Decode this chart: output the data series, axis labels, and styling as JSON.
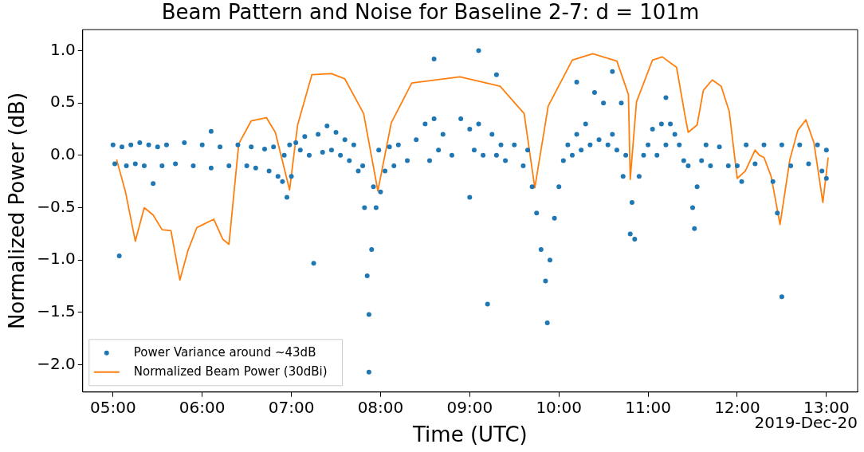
{
  "chart_data": {
    "type": "scatter",
    "title": "Beam Pattern and Noise for Baseline 2-7: d = 101m",
    "xlabel": "Time (UTC)",
    "ylabel": "Normalized Power (dB)",
    "annotations": [
      "2019-Dec-20"
    ],
    "xlim": [
      4.66,
      13.35
    ],
    "ylim": [
      -2.26,
      1.2
    ],
    "xticks": [
      {
        "value": 5,
        "label": "05:00"
      },
      {
        "value": 6,
        "label": "06:00"
      },
      {
        "value": 7,
        "label": "07:00"
      },
      {
        "value": 8,
        "label": "08:00"
      },
      {
        "value": 9,
        "label": "09:00"
      },
      {
        "value": 10,
        "label": "10:00"
      },
      {
        "value": 11,
        "label": "11:00"
      },
      {
        "value": 12,
        "label": "12:00"
      },
      {
        "value": 13,
        "label": "13:00"
      }
    ],
    "yticks": [
      {
        "value": -2,
        "label": "−2.0"
      },
      {
        "value": -1.5,
        "label": "−1.5"
      },
      {
        "value": -1,
        "label": "−1.0"
      },
      {
        "value": -0.5,
        "label": "−0.5"
      },
      {
        "value": 0,
        "label": "0.0"
      },
      0.5,
      {
        "value": 1,
        "label": "1.0"
      }
    ],
    "grid": false,
    "legend": "bottom left",
    "series": [
      {
        "name": "Power Variance around ~43dB",
        "marker": "circle",
        "color": "#1f77b4",
        "x": [
          5.0,
          5.02,
          5.07,
          5.1,
          5.15,
          5.2,
          5.25,
          5.3,
          5.35,
          5.4,
          5.45,
          5.5,
          5.55,
          5.6,
          5.7,
          5.8,
          5.9,
          6.0,
          6.1,
          6.1,
          6.2,
          6.3,
          6.4,
          6.5,
          6.55,
          6.6,
          6.7,
          6.75,
          6.8,
          6.85,
          6.9,
          6.92,
          6.95,
          6.98,
          7.0,
          7.05,
          7.1,
          7.15,
          7.2,
          7.25,
          7.3,
          7.35,
          7.4,
          7.45,
          7.5,
          7.55,
          7.6,
          7.65,
          7.7,
          7.75,
          7.8,
          7.82,
          7.85,
          7.87,
          7.87,
          7.9,
          7.92,
          7.95,
          7.98,
          8.0,
          8.05,
          8.1,
          8.15,
          8.2,
          8.3,
          8.4,
          8.5,
          8.55,
          8.6,
          8.6,
          8.65,
          8.7,
          8.8,
          8.9,
          9.0,
          9.0,
          9.05,
          9.1,
          9.1,
          9.15,
          9.2,
          9.25,
          9.3,
          9.3,
          9.35,
          9.4,
          9.5,
          9.6,
          9.65,
          9.7,
          9.75,
          9.8,
          9.85,
          9.87,
          9.9,
          9.95,
          10.0,
          10.05,
          10.1,
          10.15,
          10.2,
          10.2,
          10.25,
          10.3,
          10.35,
          10.4,
          10.45,
          10.5,
          10.55,
          10.6,
          10.6,
          10.65,
          10.7,
          10.72,
          10.75,
          10.8,
          10.82,
          10.85,
          10.9,
          10.95,
          11.0,
          11.05,
          11.1,
          11.15,
          11.2,
          11.2,
          11.25,
          11.3,
          11.35,
          11.4,
          11.45,
          11.5,
          11.52,
          11.55,
          11.6,
          11.65,
          11.7,
          11.8,
          11.9,
          12.0,
          12.05,
          12.1,
          12.2,
          12.3,
          12.4,
          12.45,
          12.5,
          12.5,
          12.6,
          12.7,
          12.8,
          12.9,
          12.95,
          13.0,
          13.0
        ],
        "values": [
          0.1,
          -0.08,
          -0.96,
          0.08,
          -0.1,
          0.1,
          -0.08,
          0.12,
          -0.1,
          0.1,
          -0.27,
          0.08,
          -0.1,
          0.1,
          -0.08,
          0.12,
          -0.1,
          0.1,
          -0.12,
          0.23,
          0.08,
          -0.1,
          0.1,
          -0.1,
          0.08,
          -0.12,
          0.06,
          -0.15,
          0.08,
          -0.2,
          -0.25,
          0.0,
          -0.4,
          0.1,
          -0.2,
          0.12,
          0.05,
          0.18,
          0.0,
          -1.03,
          0.2,
          0.03,
          0.28,
          0.05,
          0.22,
          0.0,
          0.15,
          -0.05,
          0.1,
          -0.15,
          -0.1,
          -0.5,
          -1.15,
          -1.52,
          -2.07,
          -0.9,
          -0.3,
          -0.5,
          0.05,
          -0.35,
          -0.15,
          0.08,
          -0.1,
          0.1,
          -0.05,
          0.15,
          0.3,
          -0.05,
          0.92,
          0.35,
          0.05,
          0.2,
          0.0,
          0.35,
          0.25,
          -0.4,
          0.05,
          1.0,
          0.3,
          0.0,
          -1.42,
          0.2,
          0.77,
          0.0,
          0.1,
          -0.05,
          0.1,
          -0.1,
          0.05,
          -0.3,
          -0.55,
          -0.9,
          -1.2,
          -1.6,
          -1.0,
          -0.6,
          -0.3,
          -0.05,
          0.1,
          0.0,
          0.7,
          0.2,
          0.05,
          0.3,
          0.1,
          0.6,
          0.15,
          0.5,
          0.1,
          0.8,
          0.2,
          0.05,
          0.5,
          -0.2,
          0.0,
          -0.75,
          -0.45,
          -0.8,
          -0.2,
          0.0,
          0.1,
          0.25,
          0.0,
          0.3,
          0.55,
          0.1,
          0.3,
          0.2,
          0.1,
          -0.05,
          -0.1,
          -0.5,
          -0.7,
          -0.3,
          -0.05,
          0.1,
          -0.1,
          0.08,
          -0.1,
          -0.1,
          -0.25,
          0.1,
          -0.08,
          0.1,
          -0.25,
          -0.55,
          -1.35,
          0.1,
          -0.1,
          0.1,
          -0.08,
          0.1,
          -0.15,
          0.05,
          -0.22
        ]
      },
      {
        "name": "Normalized Beam Power (30dBi)",
        "type": "line",
        "marker": "none",
        "color": "#ff7f0e",
        "x": [
          5.04,
          5.14,
          5.25,
          5.35,
          5.45,
          5.55,
          5.65,
          5.75,
          5.84,
          5.94,
          6.01,
          6.13,
          6.23,
          6.3,
          6.41,
          6.55,
          6.72,
          6.82,
          6.98,
          7.07,
          7.23,
          7.45,
          7.6,
          7.81,
          7.97,
          8.12,
          8.35,
          8.89,
          9.34,
          9.61,
          9.73,
          9.88,
          10.15,
          10.38,
          10.65,
          10.78,
          10.8,
          10.87,
          11.05,
          11.16,
          11.32,
          11.41,
          11.45,
          11.55,
          11.62,
          11.72,
          11.82,
          11.91,
          12.0,
          12.09,
          12.2,
          12.25,
          12.3,
          12.38,
          12.48,
          12.59,
          12.68,
          12.77,
          12.86,
          12.96,
          13.02
        ],
        "values": [
          -0.04,
          -0.35,
          -0.82,
          -0.5,
          -0.57,
          -0.71,
          -0.72,
          -1.19,
          -0.91,
          -0.69,
          -0.66,
          -0.61,
          -0.8,
          -0.85,
          0.11,
          0.33,
          0.36,
          0.22,
          -0.33,
          0.29,
          0.77,
          0.78,
          0.73,
          0.4,
          -0.34,
          0.31,
          0.69,
          0.75,
          0.66,
          0.4,
          -0.31,
          0.47,
          0.91,
          0.97,
          0.9,
          0.58,
          -0.23,
          0.51,
          0.91,
          0.94,
          0.84,
          0.4,
          0.22,
          0.29,
          0.62,
          0.72,
          0.66,
          0.42,
          -0.22,
          -0.15,
          0.05,
          0,
          -0.02,
          -0.2,
          -0.66,
          -0.04,
          0.24,
          0.34,
          0.12,
          -0.45,
          -0.02
        ]
      }
    ]
  }
}
